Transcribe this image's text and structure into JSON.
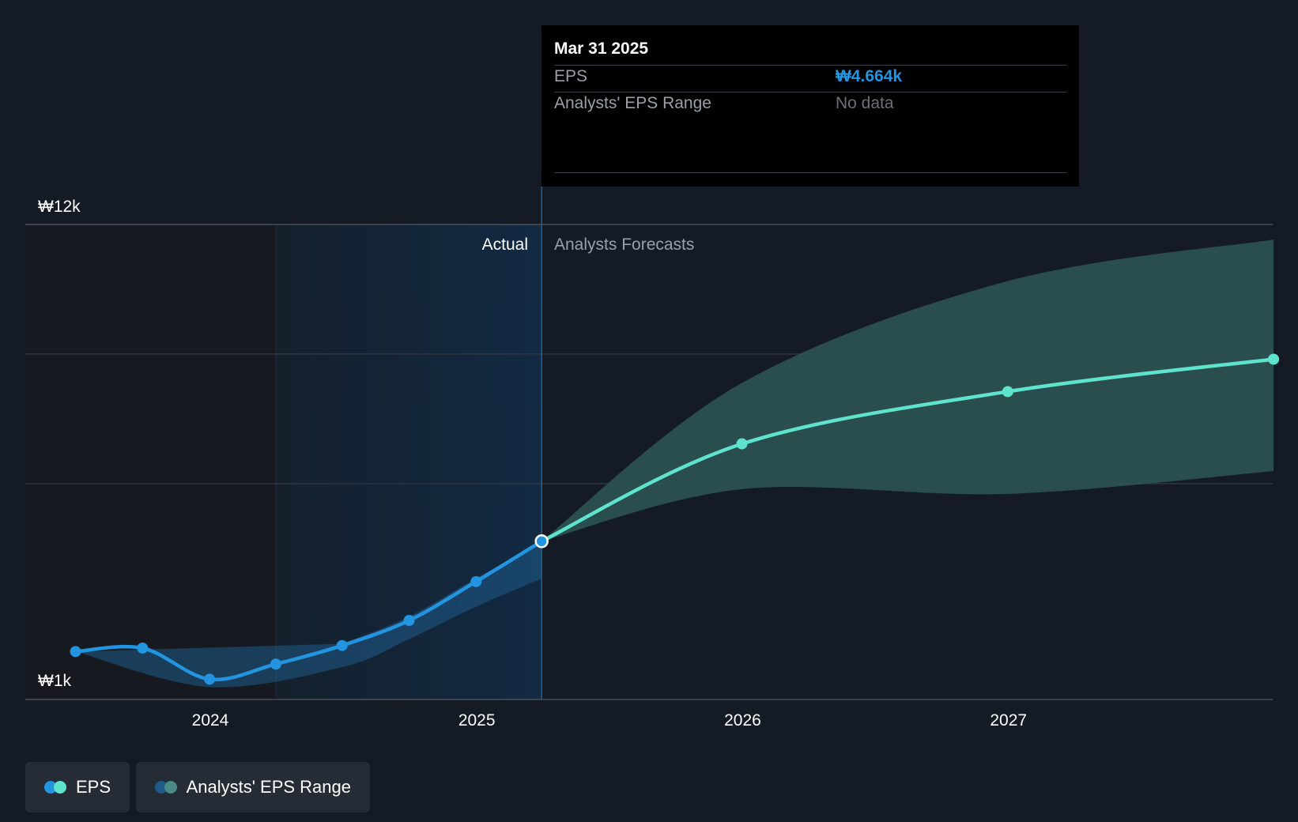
{
  "colors": {
    "background": "#151b24",
    "actual_line": "#2394df",
    "forecast_line": "#5fe3cc",
    "forecast_range": "#2e5656",
    "actual_range": "#1f5b8a",
    "actual_shade": "#122a43"
  },
  "chart_data": {
    "type": "line",
    "y_axis": {
      "min_label": "₩1k",
      "max_label": "₩12k",
      "ylim": [
        1000,
        12000
      ],
      "gridlines": [
        6000,
        9000
      ]
    },
    "x_axis": {
      "ticks": [
        "2024",
        "2025",
        "2026",
        "2027"
      ]
    },
    "region_labels": {
      "actual": "Actual",
      "forecast": "Analysts Forecasts"
    },
    "divider_date": "2025-03-31",
    "series": [
      {
        "name": "EPS",
        "kind": "actual",
        "points": [
          {
            "x": "2023-06-30",
            "y": 2110
          },
          {
            "x": "2023-09-30",
            "y": 2190
          },
          {
            "x": "2023-12-31",
            "y": 1470
          },
          {
            "x": "2024-03-31",
            "y": 1820
          },
          {
            "x": "2024-06-30",
            "y": 2250
          },
          {
            "x": "2024-09-30",
            "y": 2830
          },
          {
            "x": "2024-12-31",
            "y": 3730
          },
          {
            "x": "2025-03-31",
            "y": 4664
          }
        ]
      },
      {
        "name": "EPS",
        "kind": "forecast",
        "points": [
          {
            "x": "2025-03-31",
            "y": 4664
          },
          {
            "x": "2025-12-31",
            "y": 6920
          },
          {
            "x": "2026-12-31",
            "y": 8130
          },
          {
            "x": "2027-12-31",
            "y": 8880
          }
        ]
      },
      {
        "name": "Analysts' EPS Range",
        "kind": "actual-range",
        "upper": [
          {
            "x": "2024-06-30",
            "y": 2290
          },
          {
            "x": "2024-09-30",
            "y": 2920
          },
          {
            "x": "2024-12-31",
            "y": 3810
          },
          {
            "x": "2025-03-31",
            "y": 4664
          }
        ],
        "lower": [
          {
            "x": "2023-06-30",
            "y": 2110
          },
          {
            "x": "2023-12-31",
            "y": 1290
          },
          {
            "x": "2024-06-30",
            "y": 1750
          },
          {
            "x": "2024-09-30",
            "y": 2400
          },
          {
            "x": "2024-12-31",
            "y": 3150
          },
          {
            "x": "2025-03-31",
            "y": 3800
          }
        ]
      },
      {
        "name": "Analysts' EPS Range",
        "kind": "forecast-range",
        "upper": [
          {
            "x": "2025-03-31",
            "y": 4664
          },
          {
            "x": "2025-12-31",
            "y": 8330
          },
          {
            "x": "2026-12-31",
            "y": 10690
          },
          {
            "x": "2027-12-31",
            "y": 11650
          }
        ],
        "lower": [
          {
            "x": "2025-03-31",
            "y": 4664
          },
          {
            "x": "2025-12-31",
            "y": 5870
          },
          {
            "x": "2026-12-31",
            "y": 5760
          },
          {
            "x": "2027-12-31",
            "y": 6290
          }
        ]
      }
    ],
    "legend": [
      "EPS",
      "Analysts' EPS Range"
    ]
  },
  "tooltip": {
    "date": "Mar 31 2025",
    "eps_label": "EPS",
    "eps_value": "₩4.664k",
    "range_label": "Analysts' EPS Range",
    "range_value": "No data"
  },
  "legend": {
    "eps_label": "EPS",
    "range_label": "Analysts' EPS Range"
  }
}
